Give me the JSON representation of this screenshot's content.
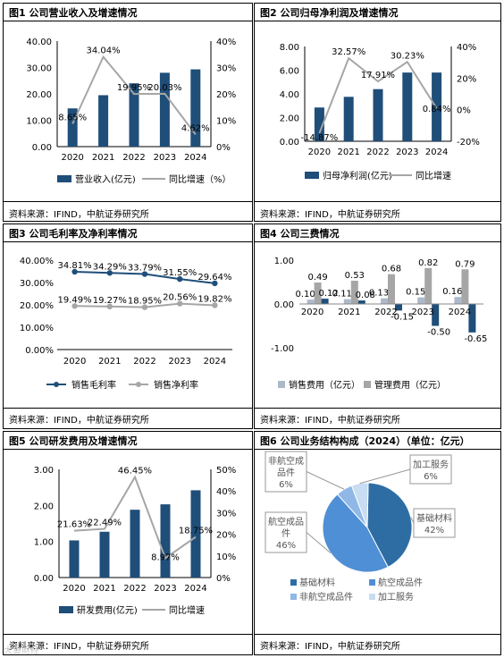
{
  "source_text": "资料来源：IFIND，中航证券研究所",
  "watermark": "大鱼財经",
  "colors": {
    "bar": "#1f4e79",
    "line": "#a6a6a6",
    "bar2": "#adb9ca",
    "bar3": "#a6a6a6"
  },
  "panels": [
    {
      "title": "图1 公司营业收入及增速情况",
      "chart_data": {
        "type": "bar+line",
        "categories": [
          "2020",
          "2021",
          "2022",
          "2023",
          "2024"
        ],
        "bars": {
          "name": "营业收入(亿元)",
          "values": [
            14.5,
            19.5,
            24.0,
            28.0,
            29.3
          ]
        },
        "line": {
          "name": "同比增速（%）",
          "values": [
            8.65,
            34.04,
            19.95,
            20.03,
            4.62
          ],
          "labels": [
            "8.65%",
            "34.04%",
            "19.95%",
            "20.03%",
            "4.62%"
          ]
        },
        "y_left": {
          "min": 0,
          "max": 40,
          "ticks": [
            "0.00",
            "10.00",
            "20.00",
            "30.00",
            "40.00"
          ]
        },
        "y_right": {
          "min": 0,
          "max": 40,
          "ticks": [
            "0%",
            "10%",
            "20%",
            "30%",
            "40%"
          ]
        },
        "legend_position": "bottom"
      }
    },
    {
      "title": "图2 公司归母净利润及增速情况",
      "chart_data": {
        "type": "bar+line",
        "categories": [
          "2020",
          "2021",
          "2022",
          "2023",
          "2024"
        ],
        "bars": {
          "name": "归母净利润(亿元)",
          "values": [
            2.85,
            3.75,
            4.4,
            5.8,
            5.8
          ]
        },
        "line": {
          "name": "同比增速",
          "values": [
            -14.87,
            32.57,
            17.91,
            30.23,
            0.84
          ],
          "labels": [
            "-14.87%",
            "32.57%",
            "17.91%",
            "30.23%",
            "0.84%"
          ]
        },
        "y_left": {
          "min": 0,
          "max": 8,
          "ticks": [
            "0.00",
            "2.00",
            "4.00",
            "6.00",
            "8.00"
          ]
        },
        "y_right": {
          "min": -20,
          "max": 40,
          "ticks": [
            "-20%",
            "0%",
            "20%",
            "40%"
          ]
        },
        "legend_position": "bottom"
      }
    },
    {
      "title": "图3 公司毛利率及净利率情况",
      "chart_data": {
        "type": "line",
        "categories": [
          "2020",
          "2021",
          "2022",
          "2023",
          "2024"
        ],
        "series": [
          {
            "name": "销售毛利率",
            "values": [
              34.81,
              34.29,
              33.79,
              31.55,
              29.64
            ],
            "labels": [
              "34.81%",
              "34.29%",
              "33.79%",
              "31.55%",
              "29.64%"
            ]
          },
          {
            "name": "销售净利率",
            "values": [
              19.49,
              19.27,
              18.95,
              20.56,
              19.82
            ],
            "labels": [
              "19.49%",
              "19.27%",
              "18.95%",
              "20.56%",
              "19.82%"
            ]
          }
        ],
        "y": {
          "min": 0,
          "max": 40,
          "ticks": [
            "0.00%",
            "10.00%",
            "20.00%",
            "30.00%",
            "40.00%"
          ]
        },
        "legend_position": "bottom"
      }
    },
    {
      "title": "图4 公司三费情况",
      "chart_data": {
        "type": "bar",
        "categories": [
          "2020",
          "2021",
          "2022",
          "2023",
          "2024"
        ],
        "series": [
          {
            "name": "销售费用（亿元）",
            "values": [
              0.1,
              0.11,
              0.13,
              0.15,
              0.16
            ],
            "labels": [
              "0.10",
              "0.11",
              "0.13",
              "0.15",
              "0.16"
            ]
          },
          {
            "name": "管理费用（亿元）",
            "values": [
              0.49,
              0.53,
              0.68,
              0.82,
              0.79
            ],
            "labels": [
              "0.49",
              "0.53",
              "0.68",
              "0.82",
              "0.79"
            ]
          },
          {
            "name": "",
            "values": [
              0.12,
              0.08,
              -0.15,
              -0.5,
              -0.65
            ],
            "labels": [
              "0.12",
              "0.08",
              "-0.15",
              "-0.50",
              "-0.65"
            ]
          }
        ],
        "y": {
          "min": -1,
          "max": 1,
          "ticks": [
            "-1.00",
            "0.00",
            "1.00"
          ]
        },
        "legend_position": "bottom"
      }
    },
    {
      "title": "图5 公司研发费用及增速情况",
      "chart_data": {
        "type": "bar+line",
        "categories": [
          "2020",
          "2021",
          "2022",
          "2023",
          "2024"
        ],
        "bars": {
          "name": "研发费用(亿元)",
          "values": [
            1.03,
            1.27,
            1.88,
            2.03,
            2.42
          ]
        },
        "line": {
          "name": "同比增速",
          "values": [
            21.63,
            22.49,
            46.45,
            8.97,
            18.75
          ],
          "labels": [
            "21.63%",
            "22.49%",
            "46.45%",
            "8.97%",
            "18.75%"
          ]
        },
        "y_left": {
          "min": 0,
          "max": 3,
          "ticks": [
            "0.00",
            "1.00",
            "2.00",
            "3.00"
          ]
        },
        "y_right": {
          "min": 0,
          "max": 50,
          "ticks": [
            "0%",
            "10%",
            "20%",
            "30%",
            "40%",
            "50%"
          ]
        },
        "legend_position": "bottom"
      }
    },
    {
      "title": "图6 公司业务结构构成（2024）（单位：亿元）",
      "chart_data": {
        "type": "pie",
        "slices": [
          {
            "name": "基础材料",
            "value": 42,
            "label_lines": [
              "基础材料",
              "42%"
            ]
          },
          {
            "name": "航空成品件",
            "value": 46,
            "label_lines": [
              "航空成品",
              "件",
              "46%"
            ]
          },
          {
            "name": "非航空成品件",
            "value": 6,
            "label_lines": [
              "非航空成",
              "品件",
              "6%"
            ]
          },
          {
            "name": "加工服务",
            "value": 6,
            "label_lines": [
              "加工服务",
              "6%"
            ]
          }
        ],
        "legend_position": "bottom"
      }
    }
  ]
}
